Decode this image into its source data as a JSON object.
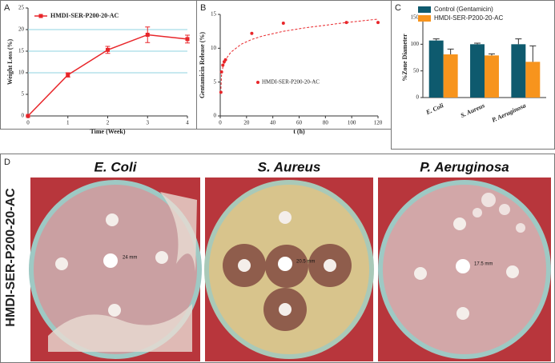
{
  "panel_labels": [
    "A",
    "B",
    "C",
    "D"
  ],
  "chart_data": [
    {
      "type": "line",
      "xlabel": "Time (Week)",
      "ylabel": "Weight Loss (%)",
      "x": [
        0,
        1,
        2,
        3,
        4
      ],
      "xlim": [
        0,
        4
      ],
      "xticks": [
        0,
        1,
        2,
        3,
        4
      ],
      "ylim": [
        0,
        25
      ],
      "yticks": [
        0,
        5,
        10,
        15,
        20,
        25
      ],
      "hlines": [
        10,
        15,
        20
      ],
      "hline_color": "#8fd3e0",
      "series": [
        {
          "name": "HMDI-SER-P200-20-AC",
          "color": "#e8262a",
          "values": [
            0,
            9.5,
            15.3,
            18.8,
            17.8
          ],
          "errors": [
            0,
            0.5,
            0.8,
            1.8,
            0.9
          ]
        }
      ]
    },
    {
      "type": "scatter",
      "xlabel": "t (h)",
      "ylabel": "Gentamicin Release (%)",
      "x": [
        0.5,
        1,
        2,
        3,
        4,
        24,
        48,
        96,
        120
      ],
      "xlim": [
        0,
        120
      ],
      "xticks": [
        0,
        20,
        40,
        60,
        80,
        100,
        120
      ],
      "ylim": [
        0,
        15
      ],
      "yticks": [
        0,
        5,
        10,
        15
      ],
      "series": [
        {
          "name": "HMDI-SER-P200-20-AC",
          "color": "#e8262a",
          "values": [
            3.5,
            6.5,
            7.5,
            8,
            8.3,
            12.2,
            13.7,
            13.8,
            13.8
          ]
        }
      ],
      "fit": {
        "color": "#e8262a",
        "x": [
          0.5,
          1,
          2,
          4,
          8,
          16,
          24,
          32,
          48,
          64,
          80,
          96,
          120
        ],
        "values": [
          4,
          6,
          7.2,
          8.3,
          9.4,
          10.6,
          11.3,
          11.8,
          12.5,
          13,
          13.4,
          13.8,
          14.3
        ]
      }
    },
    {
      "type": "bar",
      "ylabel": "%Zone Diameter",
      "categories": [
        "E. Coli",
        "S. Aureus",
        "P. Aeruginosa"
      ],
      "ylim": [
        0,
        150
      ],
      "yticks": [
        0,
        50,
        100,
        150
      ],
      "series": [
        {
          "name": "Control (Gentamicin)",
          "color": "#0e5a6e",
          "values": [
            107,
            100,
            100
          ],
          "errors": [
            3,
            2,
            10
          ]
        },
        {
          "name": "HMDI-SER-P200-20-AC",
          "color": "#f7941d",
          "values": [
            81,
            79,
            67
          ],
          "errors": [
            10,
            3,
            30
          ]
        }
      ]
    }
  ],
  "photos": {
    "row_label": "HMDI-SER-P200-20-AC",
    "items": [
      {
        "title": "E. Coli",
        "measure": "24 mm"
      },
      {
        "title": "S. Aureus",
        "measure": "20.5 mm"
      },
      {
        "title": "P. Aeruginosa",
        "measure": "17.5 mm"
      }
    ]
  }
}
